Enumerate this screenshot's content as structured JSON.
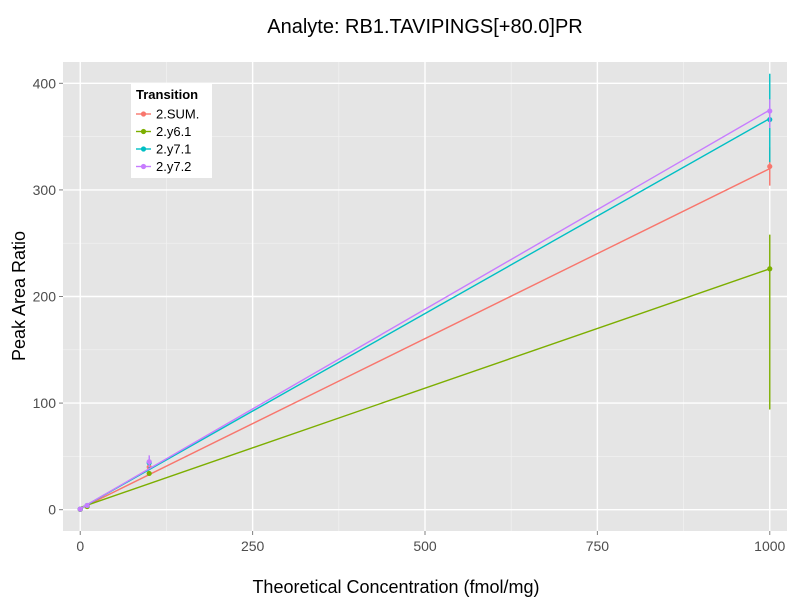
{
  "chart_data": {
    "type": "line",
    "title": "Analyte: RB1.TAVIPINGS[+80.0]PR",
    "xlabel": "Theoretical Concentration (fmol/mg)",
    "ylabel": "Peak Area Ratio",
    "xlim": [
      -25,
      1025
    ],
    "ylim": [
      -20,
      420
    ],
    "x_ticks": [
      0,
      250,
      500,
      750,
      1000
    ],
    "x_tick_labels": [
      "0",
      "250",
      "500",
      "750",
      "1000"
    ],
    "y_ticks": [
      0,
      100,
      200,
      300,
      400
    ],
    "y_tick_labels": [
      "0",
      "100",
      "200",
      "300",
      "400"
    ],
    "x_minor": [
      125,
      375,
      625,
      875
    ],
    "y_minor": [
      50,
      150,
      250,
      350
    ],
    "legend": {
      "title": "Transition",
      "position": "top-left"
    },
    "series": [
      {
        "name": "2.SUM.",
        "color": "#F8766D",
        "fit": {
          "x": [
            0,
            1000
          ],
          "y": [
            1,
            320
          ]
        },
        "points": [
          {
            "x": 0,
            "y": 0.5
          },
          {
            "x": 10,
            "y": 3.5
          },
          {
            "x": 100,
            "y": 40
          },
          {
            "x": 1000,
            "y": 322,
            "err": [
              304,
              340
            ]
          }
        ]
      },
      {
        "name": "2.y6.1",
        "color": "#7CAE00",
        "fit": {
          "x": [
            0,
            1000
          ],
          "y": [
            2,
            226
          ]
        },
        "points": [
          {
            "x": 0,
            "y": 0.3
          },
          {
            "x": 10,
            "y": 3
          },
          {
            "x": 100,
            "y": 34
          },
          {
            "x": 1000,
            "y": 226,
            "err": [
              94,
              258
            ]
          }
        ]
      },
      {
        "name": "2.y7.1",
        "color": "#00BFC4",
        "fit": {
          "x": [
            0,
            1000
          ],
          "y": [
            1,
            367
          ]
        },
        "points": [
          {
            "x": 0,
            "y": 0.5
          },
          {
            "x": 10,
            "y": 4
          },
          {
            "x": 100,
            "y": 44,
            "err": [
              38,
              50
            ]
          },
          {
            "x": 1000,
            "y": 366,
            "err": [
              326,
              409
            ]
          }
        ]
      },
      {
        "name": "2.y7.2",
        "color": "#C77CFF",
        "fit": {
          "x": [
            0,
            1000
          ],
          "y": [
            1,
            375
          ]
        },
        "points": [
          {
            "x": 0,
            "y": 0.5
          },
          {
            "x": 10,
            "y": 4
          },
          {
            "x": 100,
            "y": 45,
            "err": [
              40,
              51
            ]
          },
          {
            "x": 1000,
            "y": 374,
            "err": [
              358,
              385
            ]
          }
        ]
      }
    ]
  }
}
